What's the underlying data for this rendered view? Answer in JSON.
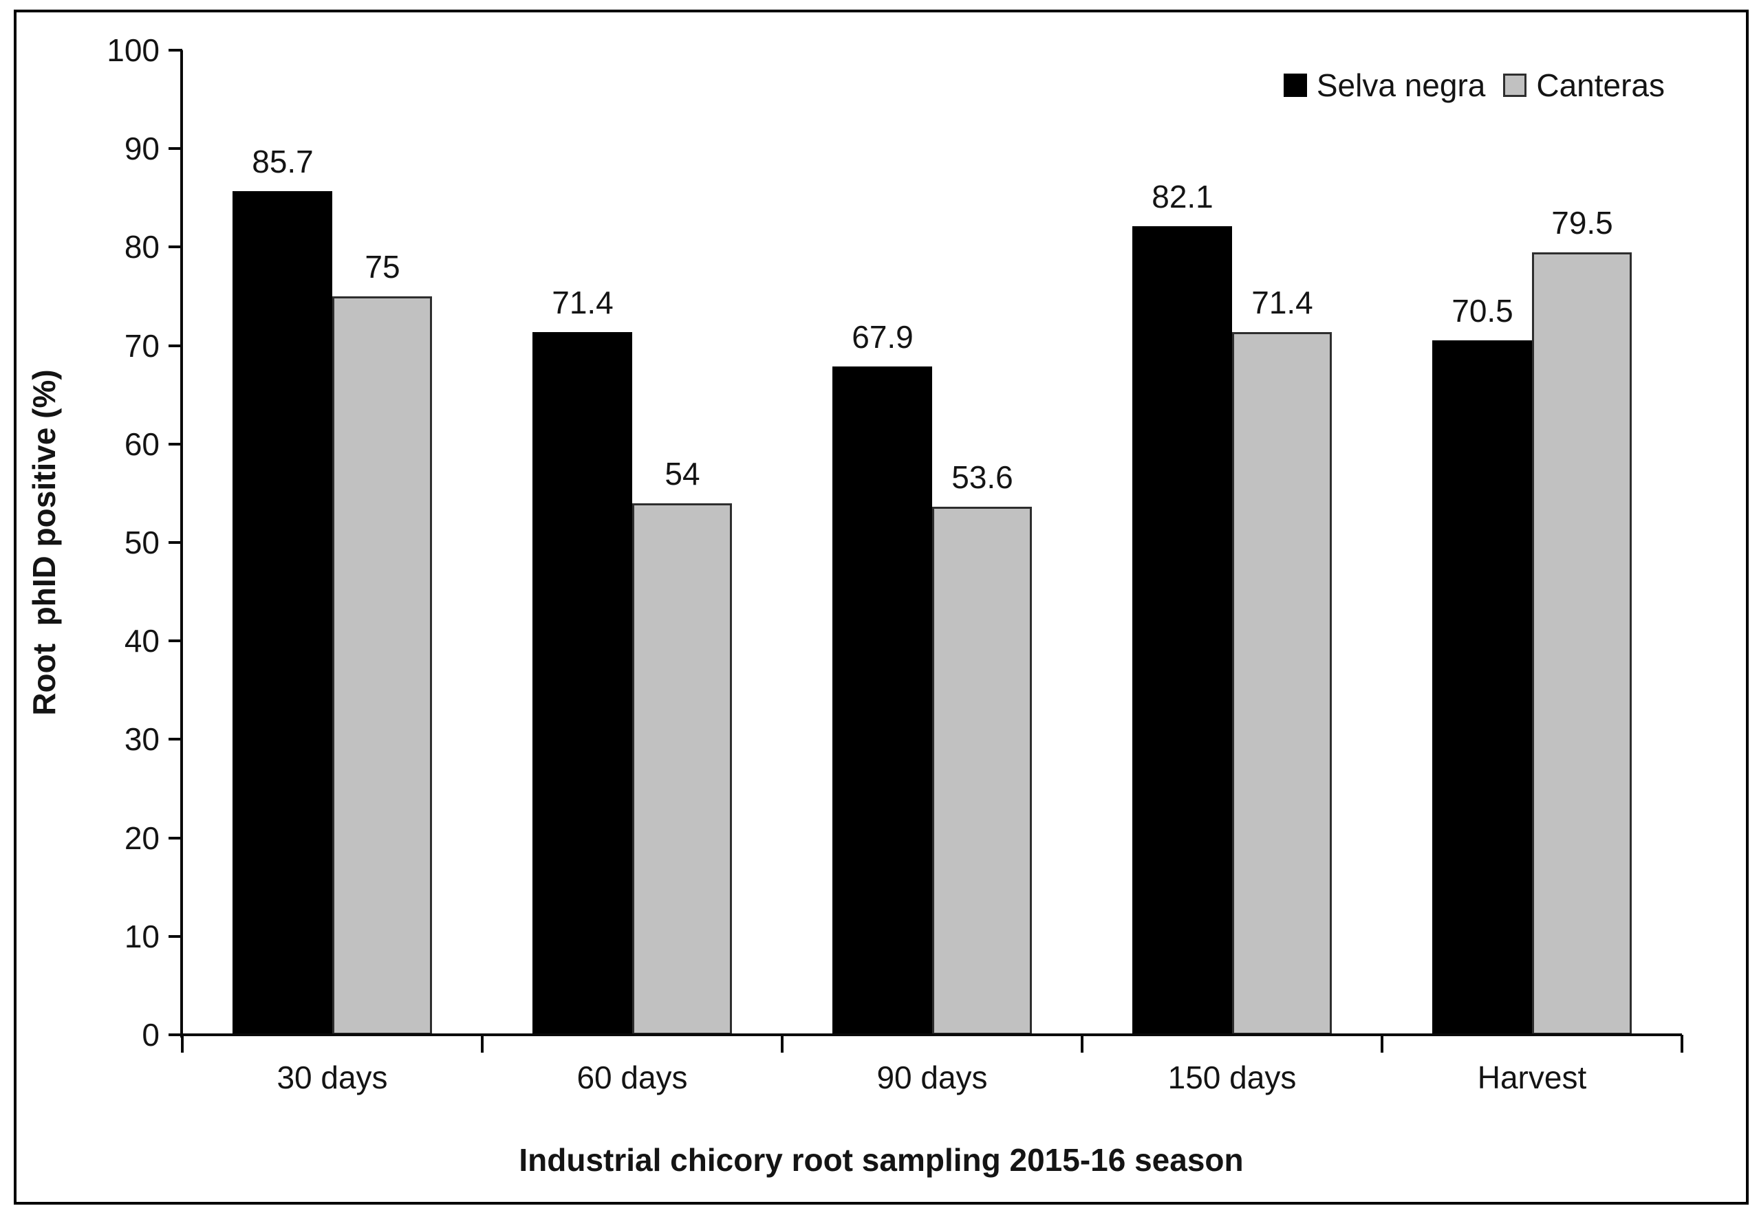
{
  "chart_data": {
    "type": "bar",
    "title": "",
    "xlabel": "Industrial chicory root sampling 2015-16 season",
    "ylabel": "Root  phID positive (%)",
    "categories": [
      "30 days",
      "60 days",
      "90 days",
      "150 days",
      "Harvest"
    ],
    "series": [
      {
        "name": "Selva negra",
        "color": "#000000",
        "border_color": "#000000",
        "values": [
          85.7,
          71.4,
          67.9,
          82.1,
          70.5
        ],
        "labels": [
          "85.7",
          "71.4",
          "67.9",
          "82.1",
          "70.5"
        ]
      },
      {
        "name": "Canteras",
        "color": "#c1c1c1",
        "border_color": "#2e2e2e",
        "values": [
          75,
          54,
          53.6,
          71.4,
          79.5
        ],
        "labels": [
          "75",
          "54",
          "53.6",
          "71.4",
          "79.5"
        ]
      }
    ],
    "ylim": [
      0,
      100
    ],
    "yticks": [
      0,
      10,
      20,
      30,
      40,
      50,
      60,
      70,
      80,
      90,
      100
    ],
    "grid": false,
    "legend_position": "top-right",
    "axis_color": "#0a0a0a",
    "text_color": "#141414"
  }
}
